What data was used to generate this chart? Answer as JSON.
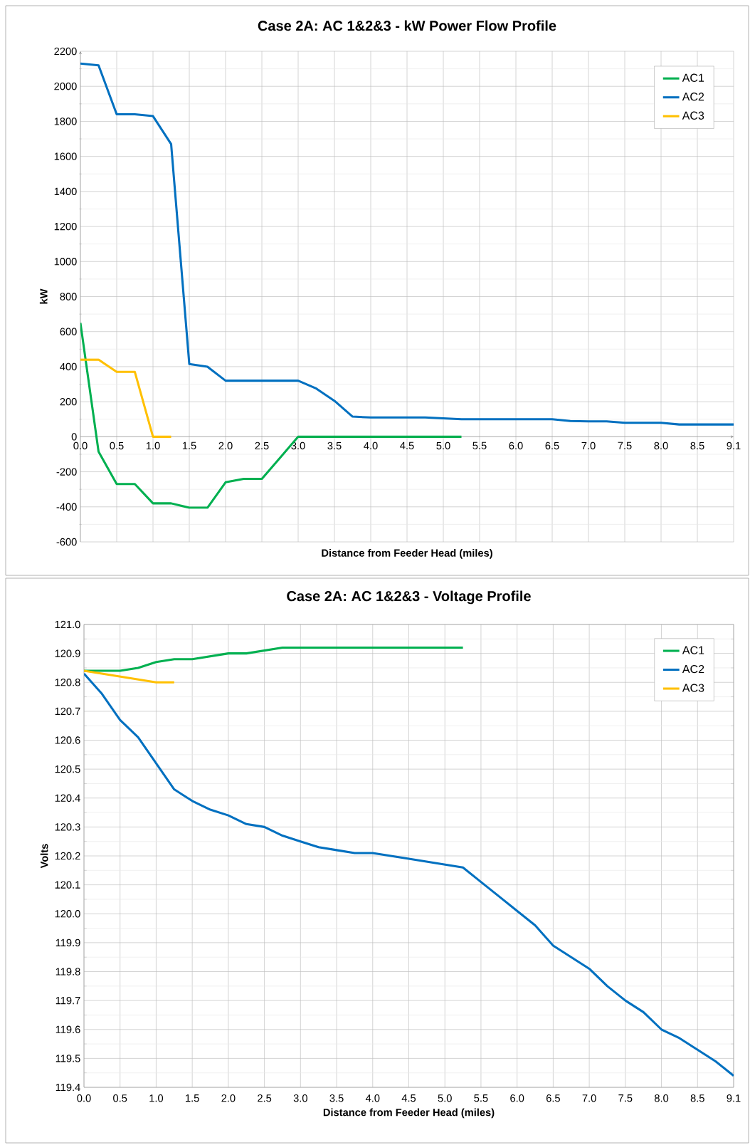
{
  "chart_data": [
    {
      "type": "line",
      "title": "Case 2A: AC 1&2&3 - kW Power Flow Profile",
      "xlabel": "Distance from Feeder Head (miles)",
      "ylabel": "kW",
      "categories": [
        "0.0",
        null,
        "0.5",
        null,
        "1.0",
        null,
        "1.5",
        null,
        "2.0",
        null,
        "2.5",
        null,
        "3.0",
        null,
        "3.5",
        null,
        "4.0",
        null,
        "4.5",
        null,
        "5.0",
        null,
        "5.5",
        null,
        "6.0",
        null,
        "6.5",
        null,
        "7.0",
        null,
        "7.5",
        null,
        "8.0",
        null,
        "8.5",
        null,
        "9.1"
      ],
      "series": [
        {
          "name": "AC1",
          "color": "#00b050",
          "values": [
            650,
            -85,
            -270,
            -270,
            -380,
            -380,
            -405,
            -405,
            -260,
            -240,
            -240,
            -120,
            0,
            0,
            0,
            0,
            0,
            0,
            0,
            0,
            0,
            0,
            null,
            null,
            null,
            null,
            null,
            null,
            null,
            null,
            null,
            null,
            null,
            null,
            null,
            null,
            null
          ]
        },
        {
          "name": "AC2",
          "color": "#0070c0",
          "values": [
            2130,
            2120,
            1840,
            1840,
            1830,
            1670,
            415,
            400,
            320,
            320,
            320,
            320,
            320,
            275,
            205,
            115,
            110,
            110,
            110,
            110,
            105,
            100,
            100,
            100,
            100,
            100,
            100,
            90,
            88,
            88,
            80,
            80,
            80,
            70,
            70,
            70,
            70
          ]
        },
        {
          "name": "AC3",
          "color": "#ffc000",
          "values": [
            440,
            440,
            370,
            370,
            0,
            0,
            null,
            null,
            null,
            null,
            null,
            null,
            null,
            null,
            null,
            null,
            null,
            null,
            null,
            null,
            null,
            null,
            null,
            null,
            null,
            null,
            null,
            null,
            null,
            null,
            null,
            null,
            null,
            null,
            null,
            null,
            null
          ]
        }
      ],
      "ylim": [
        -600,
        2200
      ],
      "yticks": [
        -600,
        -400,
        -200,
        0,
        200,
        400,
        600,
        800,
        1000,
        1200,
        1400,
        1600,
        1800,
        2000,
        2200
      ],
      "grid": true,
      "legend": "top right"
    },
    {
      "type": "line",
      "title": "Case 2A: AC 1&2&3 - Voltage Profile",
      "xlabel": "Distance from Feeder Head (miles)",
      "ylabel": "Volts",
      "categories": [
        "0.0",
        null,
        "0.5",
        null,
        "1.0",
        null,
        "1.5",
        null,
        "2.0",
        null,
        "2.5",
        null,
        "3.0",
        null,
        "3.5",
        null,
        "4.0",
        null,
        "4.5",
        null,
        "5.0",
        null,
        "5.5",
        null,
        "6.0",
        null,
        "6.5",
        null,
        "7.0",
        null,
        "7.5",
        null,
        "8.0",
        null,
        "8.5",
        null,
        "9.1"
      ],
      "series": [
        {
          "name": "AC1",
          "color": "#00b050",
          "values": [
            120.84,
            120.84,
            120.84,
            120.85,
            120.87,
            120.88,
            120.88,
            120.89,
            120.9,
            120.9,
            120.91,
            120.92,
            120.92,
            120.92,
            120.92,
            120.92,
            120.92,
            120.92,
            120.92,
            120.92,
            120.92,
            120.92,
            null,
            null,
            null,
            null,
            null,
            null,
            null,
            null,
            null,
            null,
            null,
            null,
            null,
            null,
            null
          ]
        },
        {
          "name": "AC2",
          "color": "#0070c0",
          "values": [
            120.83,
            120.76,
            120.67,
            120.61,
            120.52,
            120.43,
            120.39,
            120.36,
            120.34,
            120.31,
            120.3,
            120.27,
            120.25,
            120.23,
            120.22,
            120.21,
            120.21,
            120.2,
            120.19,
            120.18,
            120.17,
            120.16,
            120.11,
            120.06,
            120.01,
            119.96,
            119.89,
            119.85,
            119.81,
            119.75,
            119.7,
            119.66,
            119.6,
            119.57,
            119.53,
            119.49,
            119.44
          ]
        },
        {
          "name": "AC3",
          "color": "#ffc000",
          "values": [
            120.84,
            120.83,
            120.82,
            120.81,
            120.8,
            120.8,
            null,
            null,
            null,
            null,
            null,
            null,
            null,
            null,
            null,
            null,
            null,
            null,
            null,
            null,
            null,
            null,
            null,
            null,
            null,
            null,
            null,
            null,
            null,
            null,
            null,
            null,
            null,
            null,
            null,
            null,
            null
          ]
        }
      ],
      "ylim": [
        119.4,
        121.0
      ],
      "yticks": [
        {
          "value": 119.4,
          "label": "119.4"
        },
        {
          "value": 119.5,
          "label": "119.5"
        },
        {
          "value": 119.6,
          "label": "119.6"
        },
        {
          "value": 119.7,
          "label": "119.7"
        },
        {
          "value": 119.8,
          "label": "119.8"
        },
        {
          "value": 119.9,
          "label": "119.9"
        },
        {
          "value": 120.0,
          "label": "120.0"
        },
        {
          "value": 120.1,
          "label": "120.1"
        },
        {
          "value": 120.2,
          "label": "120.2"
        },
        {
          "value": 120.3,
          "label": "120.3"
        },
        {
          "value": 120.4,
          "label": "120.4"
        },
        {
          "value": 120.5,
          "label": "120.5"
        },
        {
          "value": 120.6,
          "label": "120.6"
        },
        {
          "value": 120.7,
          "label": "120.7"
        },
        {
          "value": 120.8,
          "label": "120.8"
        },
        {
          "value": 120.9,
          "label": "120.9"
        },
        {
          "value": 121.0,
          "label": "121.0"
        }
      ],
      "grid": true,
      "legend": "top right"
    }
  ]
}
